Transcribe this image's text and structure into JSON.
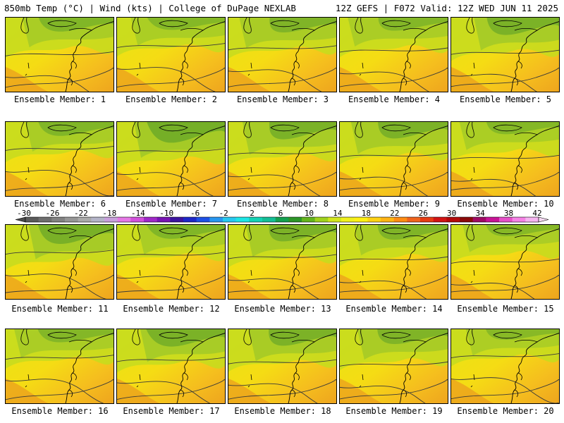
{
  "header": {
    "left": "850mb Temp (°C) | Wind (kts) | College of DuPage NEXLAB",
    "right": "12Z GEFS | F072 Valid: 12Z WED JUN 11 2025"
  },
  "members": [
    {
      "label": "Ensemble Member: 1",
      "green": 0.55
    },
    {
      "label": "Ensemble Member: 2",
      "green": 0.45
    },
    {
      "label": "Ensemble Member: 3",
      "green": 0.6
    },
    {
      "label": "Ensemble Member: 4",
      "green": 0.5
    },
    {
      "label": "Ensemble Member: 5",
      "green": 0.75
    },
    {
      "label": "Ensemble Member: 6",
      "green": 0.55
    },
    {
      "label": "Ensemble Member: 7",
      "green": 0.95
    },
    {
      "label": "Ensemble Member: 8",
      "green": 0.75
    },
    {
      "label": "Ensemble Member: 9",
      "green": 0.7
    },
    {
      "label": "Ensemble Member: 10",
      "green": 0.45
    },
    {
      "label": "Ensemble Member: 11",
      "green": 0.85
    },
    {
      "label": "Ensemble Member: 12",
      "green": 0.55
    },
    {
      "label": "Ensemble Member: 13",
      "green": 0.7
    },
    {
      "label": "Ensemble Member: 14",
      "green": 0.6
    },
    {
      "label": "Ensemble Member: 15",
      "green": 0.4
    },
    {
      "label": "Ensemble Member: 16",
      "green": 0.5
    },
    {
      "label": "Ensemble Member: 17",
      "green": 0.75
    },
    {
      "label": "Ensemble Member: 18",
      "green": 0.7
    },
    {
      "label": "Ensemble Member: 19",
      "green": 0.6
    },
    {
      "label": "Ensemble Member: 20",
      "green": 0.35
    }
  ],
  "colorbar": {
    "labels": [
      "-30",
      "-26",
      "-22",
      "-18",
      "-14",
      "-10",
      "-6",
      "-2",
      "2",
      "6",
      "10",
      "14",
      "18",
      "22",
      "26",
      "30",
      "34",
      "38",
      "42"
    ],
    "colors": [
      "#5a5a5a",
      "#6e6e6e",
      "#828282",
      "#969696",
      "#aaaaaa",
      "#b4b4c8",
      "#c8a0dc",
      "#e678e6",
      "#d250dc",
      "#a028c8",
      "#7814b4",
      "#3c14a0",
      "#1e28c8",
      "#1e50e6",
      "#2896f0",
      "#28c8f0",
      "#1ee6e6",
      "#14d2b4",
      "#14be96",
      "#14a050",
      "#2d9628",
      "#64b41e",
      "#a0d21e",
      "#d2e61e",
      "#f0f01e",
      "#fff014",
      "#ffd214",
      "#ffb414",
      "#ff8c14",
      "#f0641e",
      "#e63c14",
      "#d21414",
      "#b40a0a",
      "#8c0a0a",
      "#a00a64",
      "#c81496",
      "#e650c8",
      "#f582e6",
      "#f5b4f0"
    ]
  }
}
